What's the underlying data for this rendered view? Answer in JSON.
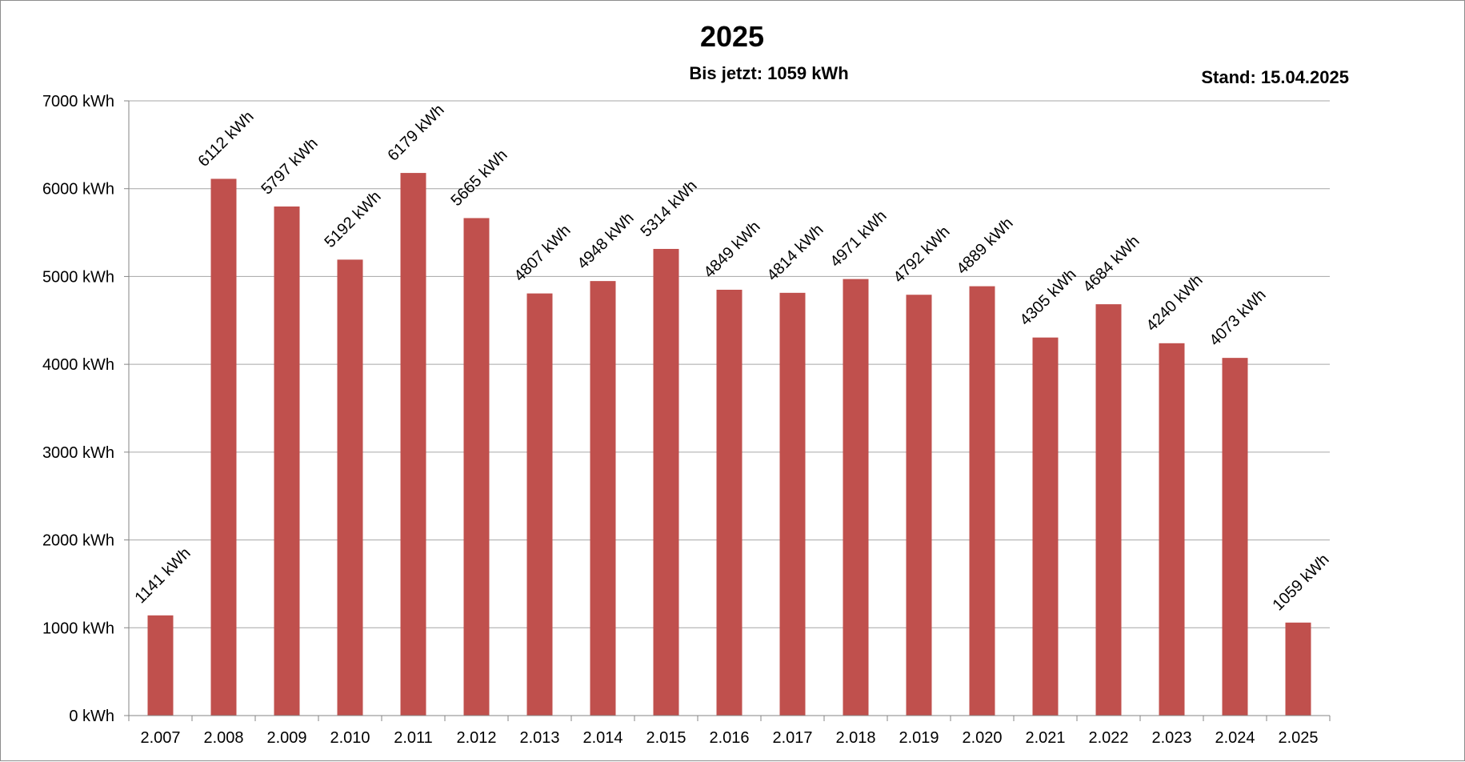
{
  "chart_data": {
    "type": "bar",
    "title": "2025",
    "subtitle": "Bis jetzt: 1059 kWh",
    "status_note": "Stand: 15.04.2025",
    "unit": "kWh",
    "categories": [
      "2.007",
      "2.008",
      "2.009",
      "2.010",
      "2.011",
      "2.012",
      "2.013",
      "2.014",
      "2.015",
      "2.016",
      "2.017",
      "2.018",
      "2.019",
      "2.020",
      "2.021",
      "2.022",
      "2.023",
      "2.024",
      "2.025"
    ],
    "values": [
      1141,
      6112,
      5797,
      5192,
      6179,
      5665,
      4807,
      4948,
      5314,
      4849,
      4814,
      4971,
      4792,
      4889,
      4305,
      4684,
      4240,
      4073,
      1059
    ],
    "data_labels": [
      "1141 kWh",
      "6112 kWh",
      "5797 kWh",
      "5192 kWh",
      "6179 kWh",
      "5665 kWh",
      "4807 kWh",
      "4948 kWh",
      "5314 kWh",
      "4849 kWh",
      "4814 kWh",
      "4971 kWh",
      "4792 kWh",
      "4889 kWh",
      "4305 kWh",
      "4684 kWh",
      "4240 kWh",
      "4073 kWh",
      "1059 kWh"
    ],
    "y_ticks": [
      0,
      1000,
      2000,
      3000,
      4000,
      5000,
      6000,
      7000
    ],
    "y_tick_labels": [
      "0 kWh",
      "1000 kWh",
      "2000 kWh",
      "3000 kWh",
      "4000 kWh",
      "5000 kWh",
      "6000 kWh",
      "7000 kWh"
    ],
    "ylim": [
      0,
      7000
    ],
    "xlabel": "",
    "ylabel": "",
    "grid": true,
    "legend": "none",
    "bar_color": "#c0504d",
    "grid_color": "#a6a6a6",
    "axis_color": "#868686"
  }
}
